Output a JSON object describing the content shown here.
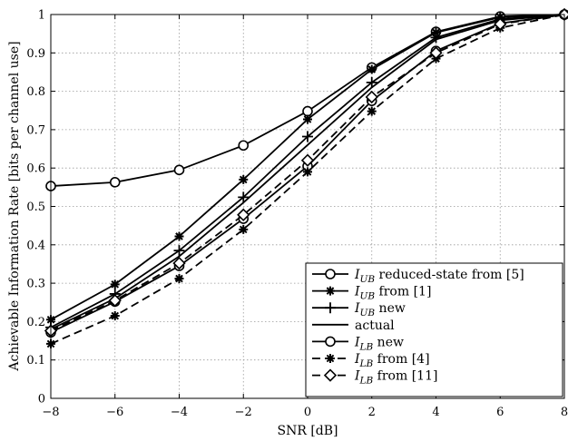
{
  "chart_data": {
    "type": "line",
    "title": "",
    "xlabel": "SNR [dB]",
    "ylabel": "Achievable Information Rate [bits per channel use]",
    "xlim": [
      -8,
      8
    ],
    "ylim": [
      0,
      1
    ],
    "xticks": [
      -8,
      -6,
      -4,
      -2,
      0,
      2,
      4,
      6,
      8
    ],
    "yticks": [
      0,
      0.1,
      0.2,
      0.3,
      0.4,
      0.5,
      0.6,
      0.7,
      0.8,
      0.9,
      1
    ],
    "grid": true,
    "legend_position": "bottom-right",
    "x": [
      -8,
      -6,
      -4,
      -2,
      0,
      2,
      4,
      6,
      8
    ],
    "series": [
      {
        "name_main": "I",
        "name_sub": "UB",
        "name_rest": " reduced-state from [5]",
        "line": "solid",
        "marker": "circle",
        "values": [
          0.553,
          0.563,
          0.595,
          0.659,
          0.748,
          0.862,
          0.955,
          0.995,
          1.0
        ]
      },
      {
        "name_main": "I",
        "name_sub": "UB",
        "name_rest": " from [1]",
        "line": "solid",
        "marker": "star",
        "values": [
          0.205,
          0.297,
          0.422,
          0.57,
          0.727,
          0.857,
          0.953,
          0.993,
          1.0
        ]
      },
      {
        "name_main": "I",
        "name_sub": "UB",
        "name_rest": " new",
        "line": "solid",
        "marker": "plus",
        "values": [
          0.185,
          0.272,
          0.385,
          0.524,
          0.682,
          0.823,
          0.94,
          0.988,
          1.0
        ]
      },
      {
        "name_main": "",
        "name_sub": "",
        "name_rest": "actual",
        "line": "solid",
        "marker": "none",
        "values": [
          0.18,
          0.26,
          0.37,
          0.51,
          0.66,
          0.81,
          0.935,
          0.985,
          1.0
        ]
      },
      {
        "name_main": "I",
        "name_sub": "LB",
        "name_rest": " new",
        "line": "solid",
        "marker": "circle",
        "values": [
          0.172,
          0.252,
          0.345,
          0.468,
          0.605,
          0.775,
          0.905,
          0.977,
          1.0
        ]
      },
      {
        "name_main": "I",
        "name_sub": "LB",
        "name_rest": " from [4]",
        "line": "dashed",
        "marker": "star",
        "values": [
          0.142,
          0.215,
          0.312,
          0.44,
          0.59,
          0.748,
          0.885,
          0.965,
          1.0
        ]
      },
      {
        "name_main": "I",
        "name_sub": "LB",
        "name_rest": " from [11]",
        "line": "dashed",
        "marker": "diamond",
        "values": [
          0.176,
          0.255,
          0.352,
          0.478,
          0.62,
          0.785,
          0.9,
          0.975,
          1.0
        ]
      }
    ]
  }
}
